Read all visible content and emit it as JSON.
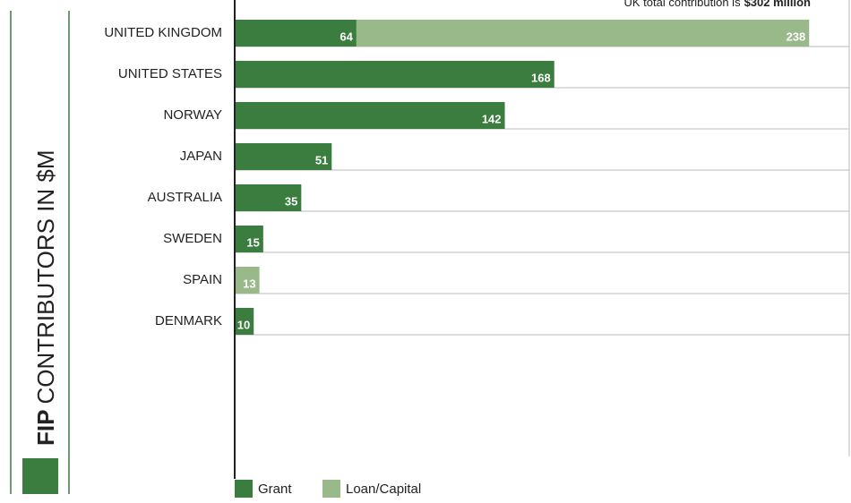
{
  "chart_data": {
    "type": "stacked-bar-horizontal",
    "title_bold": "FIP",
    "title": "CONTRIBUTORS IN $M",
    "annotation": {
      "text": "UK total contribution is",
      "highlight": "$302 million"
    },
    "categories": [
      "UNITED KINGDOM",
      "UNITED STATES",
      "NORWAY",
      "JAPAN",
      "AUSTRALIA",
      "SWEDEN",
      "SPAIN",
      "DENMARK"
    ],
    "series": [
      {
        "name": "Grant",
        "color": "#3a7d3f",
        "values": [
          64,
          168,
          142,
          51,
          35,
          15,
          null,
          10
        ]
      },
      {
        "name": "Loan/Capital",
        "color": "#9ab98a",
        "values": [
          238,
          null,
          null,
          null,
          null,
          null,
          13,
          null
        ]
      }
    ],
    "xlim": [
      0,
      324
    ],
    "grid": true
  }
}
